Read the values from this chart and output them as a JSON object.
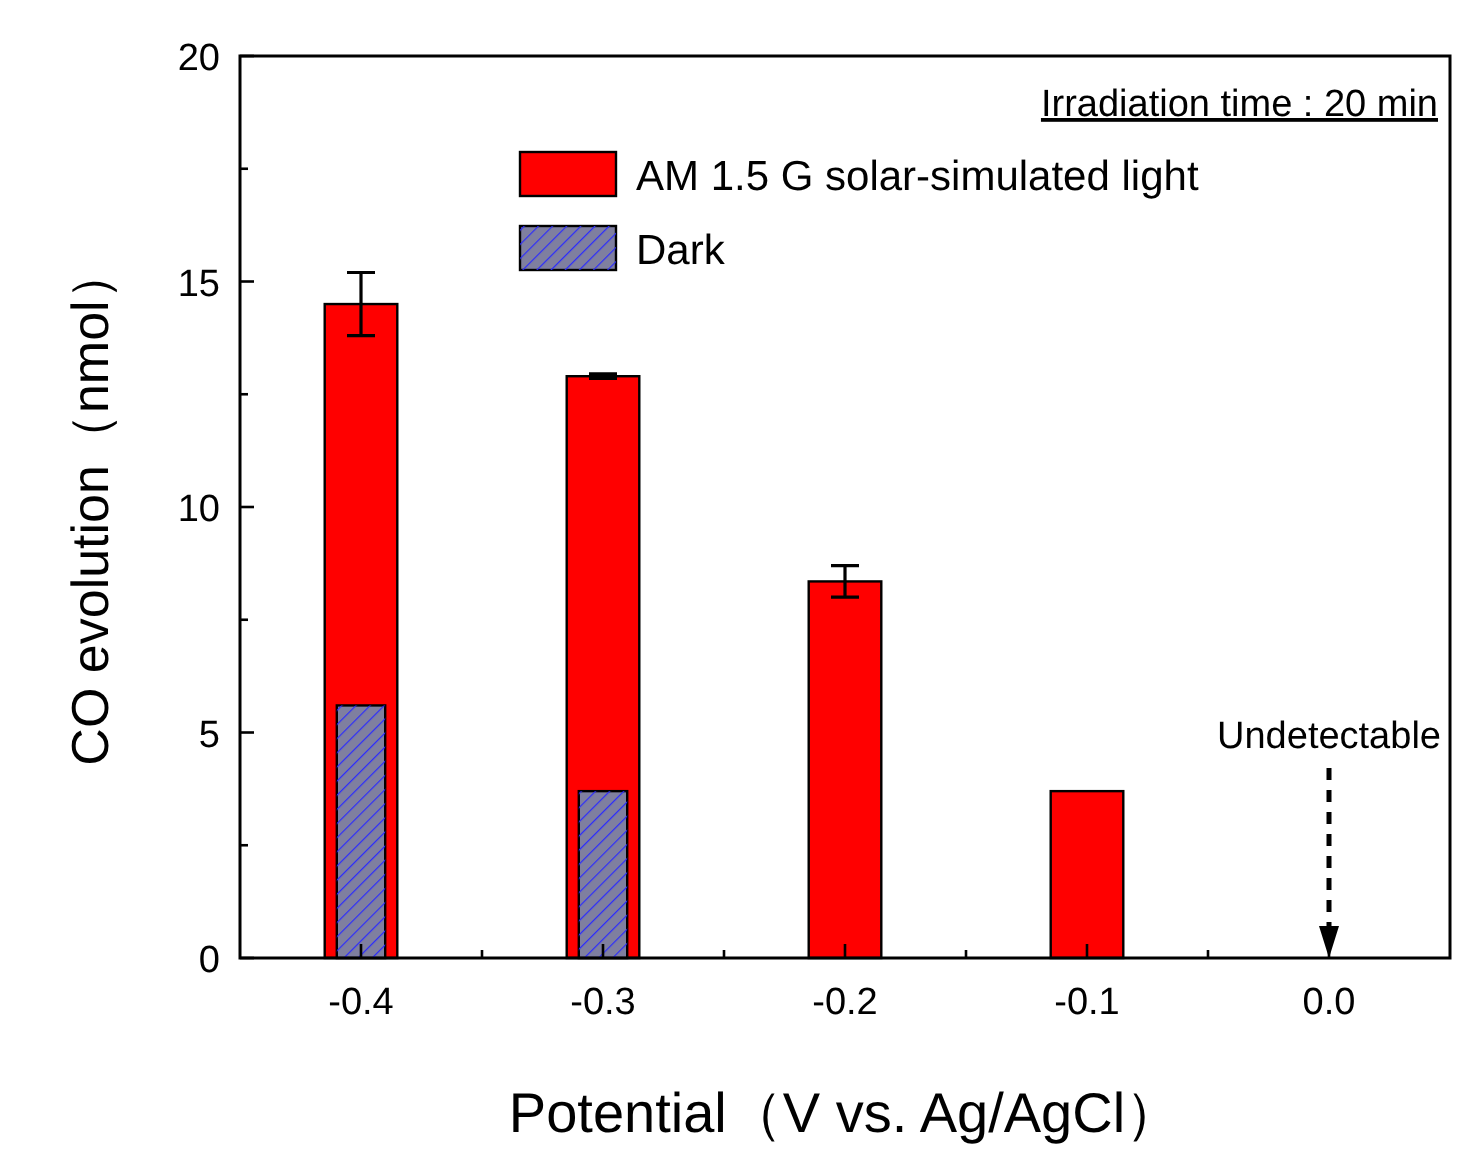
{
  "chart_data": {
    "type": "bar",
    "xlabel": "Potential（V vs. Ag/AgCl）",
    "ylabel": "CO evolution（nmol）",
    "x": [
      -0.4,
      -0.3,
      -0.2,
      -0.1
    ],
    "series": [
      {
        "name": "AM 1.5 G solar-simulated light",
        "color": "#ff0000",
        "values": [
          14.5,
          12.9,
          8.35,
          3.7
        ],
        "errors": [
          [
            13.8,
            15.2
          ],
          [
            12.85,
            12.95
          ],
          [
            8.0,
            8.7
          ],
          null
        ]
      },
      {
        "name": "Dark",
        "color": "#7f7f9f",
        "values": [
          5.6,
          3.7,
          null,
          null
        ]
      }
    ],
    "xlim": [
      -0.45,
      0.05
    ],
    "xticks": [
      {
        "value": -0.4,
        "label": "-0.4"
      },
      {
        "value": -0.3,
        "label": "-0.3"
      },
      {
        "value": -0.2,
        "label": "-0.2"
      },
      {
        "value": -0.1,
        "label": "-0.1"
      },
      {
        "value": 0.0,
        "label": "0.0"
      }
    ],
    "ylim": [
      0,
      20
    ],
    "yticks": [
      0,
      5,
      10,
      15,
      20
    ],
    "legend": "top right",
    "grid": false,
    "annotations": [
      "Irradiation time : 20 min",
      "Undetectable"
    ]
  }
}
